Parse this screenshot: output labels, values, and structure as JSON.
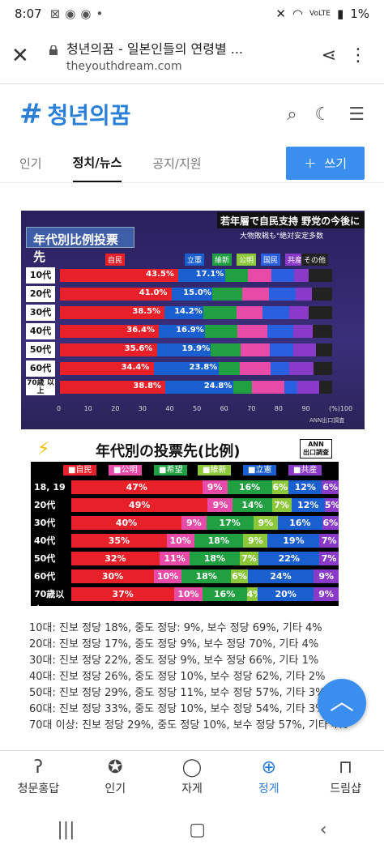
{
  "status": {
    "time": "8:07",
    "battery": "1%",
    "signal_label": "VoLTE"
  },
  "browser": {
    "page_title": "청년의꿈 - 일본인들의 연령별 ...",
    "url": "theyouthdream.com"
  },
  "site": {
    "logo_text": "청년의꿈"
  },
  "tabs": [
    {
      "label": "인기"
    },
    {
      "label": "정치/뉴스"
    },
    {
      "label": "공지/지원"
    }
  ],
  "write_button": {
    "label": "쓰기",
    "icon": "plus-icon"
  },
  "chart1": {
    "headline": "若年層で自民支持  野党の今後に",
    "subline": "大物敗戦も\"絶対安定多数",
    "title": "年代別比例投票先",
    "source": "ANN出口調査",
    "legend": [
      "自民",
      "立憲",
      "維新",
      "公明",
      "国民",
      "共産",
      "その他"
    ],
    "rows": [
      {
        "label": "10代",
        "ldp": "43.5%",
        "cdp": "17.1%"
      },
      {
        "label": "20代",
        "ldp": "41.0%",
        "cdp": "15.0%"
      },
      {
        "label": "30代",
        "ldp": "38.5%",
        "cdp": "14.2%"
      },
      {
        "label": "40代",
        "ldp": "36.4%",
        "cdp": "16.9%"
      },
      {
        "label": "50代",
        "ldp": "35.6%",
        "cdp": "19.9%"
      },
      {
        "label": "60代",
        "ldp": "34.4%",
        "cdp": "23.8%"
      },
      {
        "label": "70歳",
        "sub": "以上",
        "ldp": "38.8%",
        "cdp": "24.8%"
      }
    ],
    "axis": [
      "0",
      "10",
      "20",
      "30",
      "40",
      "50",
      "60",
      "70",
      "80",
      "90",
      "(%)100"
    ]
  },
  "chart_data": [
    {
      "type": "bar",
      "title": "年代別比例投票先",
      "categories": [
        "10代",
        "20代",
        "30代",
        "40代",
        "50代",
        "60代",
        "70歳以上"
      ],
      "series": [
        {
          "name": "自民",
          "values": [
            43.5,
            41.0,
            38.5,
            36.4,
            35.6,
            34.4,
            38.8
          ]
        },
        {
          "name": "立憲",
          "values": [
            17.1,
            15.0,
            14.2,
            16.9,
            19.9,
            23.8,
            24.8
          ]
        }
      ],
      "xlim": [
        0,
        100
      ]
    },
    {
      "type": "bar",
      "title": "年代別の投票先(比例)",
      "categories": [
        "18, 19歳",
        "20代",
        "30代",
        "40代",
        "50代",
        "60代",
        "70歳以上"
      ],
      "series": [
        {
          "name": "自民",
          "values": [
            47,
            49,
            40,
            35,
            32,
            30,
            37
          ]
        },
        {
          "name": "公明",
          "values": [
            9,
            9,
            9,
            10,
            11,
            10,
            10
          ]
        },
        {
          "name": "希望",
          "values": [
            16,
            14,
            17,
            18,
            18,
            18,
            16
          ]
        },
        {
          "name": "維新",
          "values": [
            6,
            7,
            9,
            9,
            7,
            6,
            4
          ]
        },
        {
          "name": "立憲",
          "values": [
            12,
            12,
            16,
            19,
            22,
            24,
            20
          ]
        },
        {
          "name": "共産",
          "values": [
            6,
            5,
            6,
            7,
            7,
            9,
            9
          ]
        }
      ]
    }
  ],
  "chart2": {
    "title": "年代別の投票先(比例)",
    "ann_line1": "ANN",
    "ann_line2": "出口調査",
    "legend": [
      "自民",
      "公明",
      "希望",
      "維新",
      "立憲",
      "共産"
    ]
  },
  "colors": {
    "ldp": "#e8202a",
    "komeito": "#e84aa8",
    "kibo": "#20a040",
    "ishin": "#8cc83a",
    "cdp": "#1a5fd0",
    "jcp": "#8a3ac8",
    "dpp": "#2a5fe0",
    "other": "#222222",
    "accent": "#3a8ef0"
  },
  "summary_lines": [
    "10대: 진보 정당 18%, 중도 정당: 9%, 보수 정당 69%, 기타 4%",
    "20대: 진보 정당 17%, 중도 정당 9%, 보수 정당 70%, 기타 4%",
    "30대: 진보 정당 22%, 중도 정당 9%, 보수 정당 66%, 기타 1%",
    "40대: 진보 정당 26%, 중도 정당 10%, 보수 정당 62%, 기타 2%",
    "50대: 진보 정당 29%, 중도 정당 11%, 보수 정당 57%, 기타 3%",
    "60대: 진보 정당 33%, 중도 정당 10%, 보수 정당 54%, 기타 3%",
    "70대 이상: 진보 정당 29%, 중도 정당 10%, 보수 정당 57%, 기타 4%"
  ],
  "bottom_nav": [
    {
      "label": "청문홍답",
      "icon": "ear-icon"
    },
    {
      "label": "인기",
      "icon": "award-icon"
    },
    {
      "label": "자게",
      "icon": "chat-icon"
    },
    {
      "label": "정게",
      "icon": "globe-icon"
    },
    {
      "label": "드림샵",
      "icon": "bag-icon"
    }
  ]
}
